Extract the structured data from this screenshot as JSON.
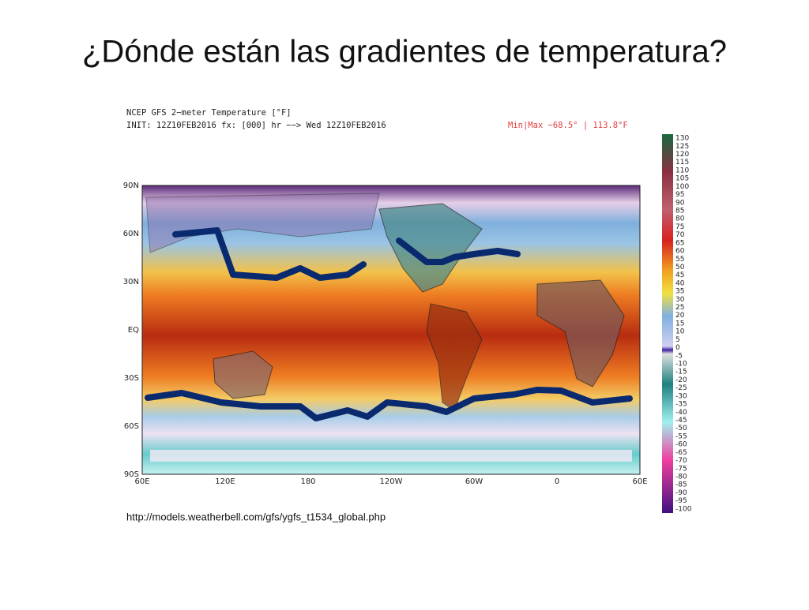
{
  "slide": {
    "title": "¿Dónde están las gradientes de temperatura?",
    "map": {
      "header_line1": "NCEP GFS 2−meter Temperature [°F]",
      "header_line2": "INIT: 12Z10FEB2016 fx: [000] hr −−> Wed 12Z10FEB2016",
      "minmax": "Min|Max −68.5° | 113.8°F",
      "lat_labels": [
        "90N",
        "60N",
        "30N",
        "EQ",
        "30S",
        "60S",
        "90S"
      ],
      "lon_labels": [
        "60E",
        "120E",
        "180",
        "120W",
        "60W",
        "0",
        "60E"
      ],
      "colorbar_labels": [
        130,
        125,
        120,
        115,
        110,
        105,
        100,
        95,
        90,
        85,
        80,
        75,
        70,
        65,
        60,
        55,
        50,
        45,
        40,
        35,
        30,
        25,
        20,
        15,
        10,
        5,
        0,
        -5,
        -10,
        -15,
        -20,
        -25,
        -30,
        -35,
        -40,
        -45,
        -50,
        -55,
        -60,
        -65,
        -70,
        -75,
        -80,
        -85,
        -90,
        -95,
        -100
      ]
    },
    "source_url": "http://models.weatherbell.com/gfs/ygfs_t1534_global.php"
  }
}
